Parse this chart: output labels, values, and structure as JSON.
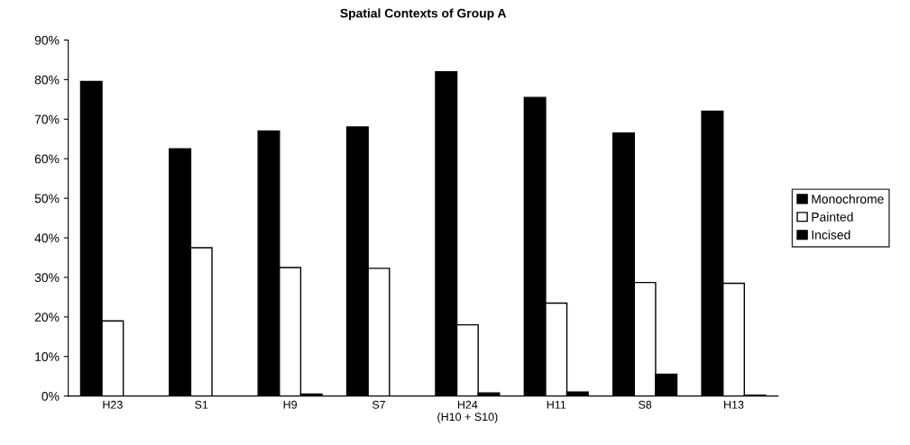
{
  "chart_data": {
    "type": "bar",
    "title": "Spatial Contexts of Group A",
    "categories": [
      "H23",
      "S1",
      "H9",
      "S7",
      "H24\n(H10 + S10)",
      "H11",
      "S8",
      "H13"
    ],
    "series": [
      {
        "name": "Monochrome",
        "color": "#000000",
        "values": [
          79.5,
          62.5,
          67,
          68,
          82,
          75.5,
          66.5,
          72
        ]
      },
      {
        "name": "Painted",
        "color": "#ffffff",
        "values": [
          19,
          37.5,
          32.5,
          32.3,
          18,
          23.5,
          28.7,
          28.5
        ]
      },
      {
        "name": "Incised",
        "color": "#000000",
        "values": [
          0,
          0,
          0.5,
          0,
          0.8,
          1,
          5.5,
          0.2
        ]
      }
    ],
    "ylim": [
      0,
      90
    ],
    "yticks": [
      {
        "value": 0,
        "label": "0%"
      },
      {
        "value": 10,
        "label": "10%"
      },
      {
        "value": 20,
        "label": "20%"
      },
      {
        "value": 30,
        "label": "30%"
      },
      {
        "value": 40,
        "label": "40%"
      },
      {
        "value": 50,
        "label": "50%"
      },
      {
        "value": 60,
        "label": "60%"
      },
      {
        "value": 70,
        "label": "70%"
      },
      {
        "value": 80,
        "label": "80%"
      },
      {
        "value": 90,
        "label": "90%"
      }
    ],
    "grid": false,
    "legend": "right"
  }
}
